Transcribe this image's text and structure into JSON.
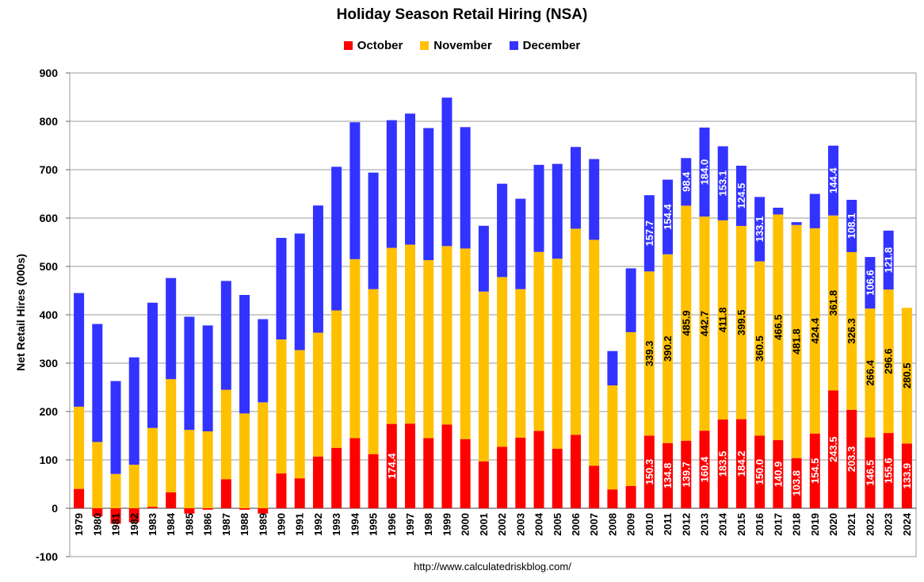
{
  "chart_data": {
    "type": "bar",
    "stacked": true,
    "title": "Holiday Season Retail Hiring (NSA)",
    "ylabel": "Net Retail Hires (000s)",
    "xlabel": "",
    "source": "http://www.calculatedriskblog.com/",
    "ylim": [
      -100,
      900
    ],
    "yticks": [
      "-100",
      "0",
      "100",
      "200",
      "300",
      "400",
      "500",
      "600",
      "700",
      "800",
      "900"
    ],
    "grid": true,
    "legend_position": "top-center",
    "categories": [
      "1979",
      "1980",
      "1981",
      "1982",
      "1983",
      "1984",
      "1985",
      "1986",
      "1987",
      "1988",
      "1989",
      "1990",
      "1991",
      "1992",
      "1993",
      "1994",
      "1995",
      "1996",
      "1997",
      "1998",
      "1999",
      "2000",
      "2001",
      "2002",
      "2003",
      "2004",
      "2005",
      "2006",
      "2007",
      "2008",
      "2009",
      "2010",
      "2011",
      "2012",
      "2013",
      "2014",
      "2015",
      "2016",
      "2017",
      "2018",
      "2019",
      "2020",
      "2021",
      "2022",
      "2023",
      "2024"
    ],
    "series": [
      {
        "name": "October",
        "color": "#ff0000",
        "values": [
          40,
          -17,
          -32,
          -29,
          3,
          33,
          -11,
          -3,
          60,
          -3,
          -11,
          72,
          62,
          107,
          125,
          145,
          112,
          174.4,
          175,
          145,
          173,
          143,
          97,
          127,
          146,
          160,
          123,
          152,
          88,
          39,
          46,
          150.3,
          134.8,
          139.7,
          160.4,
          183.5,
          184.2,
          150.0,
          140.9,
          103.8,
          154.5,
          243.5,
          203.3,
          146.5,
          155.6,
          133.9
        ],
        "labels": [
          "",
          "",
          "",
          "",
          "",
          "",
          "",
          "",
          "",
          "",
          "",
          "",
          "",
          "",
          "",
          "",
          "",
          "174.4",
          "",
          "",
          "",
          "",
          "",
          "",
          "",
          "",
          "",
          "",
          "",
          "",
          "",
          "150.3",
          "134.8",
          "139.7",
          "160.4",
          "183.5",
          "184.2",
          "150.0",
          "140.9",
          "103.8",
          "154.5",
          "243.5",
          "203.3",
          "146.5",
          "155.6",
          "133.9"
        ]
      },
      {
        "name": "November",
        "color": "#ffc000",
        "values": [
          170,
          137,
          71,
          90,
          163,
          234,
          162,
          159,
          185,
          196,
          219,
          277,
          265,
          256,
          284,
          370,
          341,
          364,
          370,
          368,
          369,
          394,
          351,
          351,
          307,
          370,
          393,
          426,
          467,
          215,
          318,
          339.3,
          390.2,
          485.9,
          442.7,
          411.8,
          399.5,
          360.5,
          466.5,
          481.8,
          424.4,
          361.8,
          326.3,
          266.4,
          296.6,
          280.5
        ],
        "labels": [
          "",
          "",
          "",
          "",
          "",
          "",
          "",
          "",
          "",
          "",
          "",
          "",
          "",
          "",
          "",
          "",
          "",
          "",
          "",
          "",
          "",
          "",
          "",
          "",
          "",
          "",
          "",
          "",
          "",
          "",
          "",
          "339.3",
          "390.2",
          "485.9",
          "442.7",
          "411.8",
          "399.5",
          "360.5",
          "466.5",
          "481.8",
          "424.4",
          "361.8",
          "326.3",
          "266.4",
          "296.6",
          "280.5"
        ]
      },
      {
        "name": "December",
        "color": "#3333ff",
        "values": [
          235,
          244,
          192,
          222,
          259,
          209,
          234,
          219,
          225,
          245,
          172,
          210,
          241,
          263,
          297,
          283,
          241,
          264,
          271,
          273,
          307,
          251,
          136,
          193,
          187,
          180,
          196,
          169,
          167,
          71,
          132,
          157.7,
          154.4,
          98.4,
          184.0,
          153.1,
          124.5,
          133.1,
          14,
          6,
          71,
          144.4,
          108.1,
          106.6,
          121.8,
          0
        ],
        "labels": [
          "",
          "",
          "",
          "",
          "",
          "",
          "",
          "",
          "",
          "",
          "",
          "",
          "",
          "",
          "",
          "",
          "",
          "",
          "",
          "",
          "",
          "",
          "",
          "",
          "",
          "",
          "",
          "",
          "",
          "",
          "",
          "157.7",
          "154.4",
          "98.4",
          "184.0",
          "153.1",
          "124.5",
          "133.1",
          "",
          "",
          "",
          "144.4",
          "108.1",
          "106.6",
          "121.8",
          ""
        ]
      }
    ]
  }
}
